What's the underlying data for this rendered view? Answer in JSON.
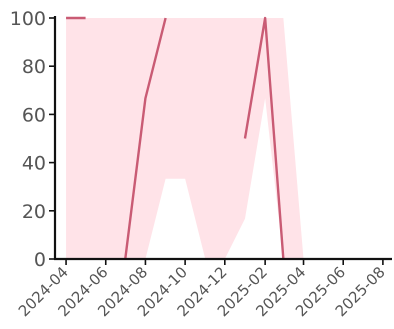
{
  "chart_data": {
    "type": "line",
    "title": "",
    "xlabel": "",
    "ylabel": "",
    "xlim": [
      "2024-03-15",
      "2025-08-15"
    ],
    "ylim": [
      0,
      100
    ],
    "grid": false,
    "legend": "none",
    "x_ticks": [
      "2024-04",
      "2024-06",
      "2024-08",
      "2024-10",
      "2024-12",
      "2025-02",
      "2025-04",
      "2025-06",
      "2025-08"
    ],
    "y_ticks": [
      0,
      20,
      40,
      60,
      80,
      100
    ],
    "colors": {
      "line": "#c95b74",
      "band": "#ffe3e8",
      "axis": "#111111",
      "tick_label": "#555555"
    },
    "band": {
      "x": [
        "2024-04-01",
        "2024-05-01",
        "2024-06-01",
        "2024-07-01",
        "2024-08-01",
        "2024-09-01",
        "2024-10-01",
        "2024-11-01",
        "2024-12-01",
        "2025-01-01",
        "2025-02-01",
        "2025-03-01",
        "2025-04-01"
      ],
      "lower": [
        0,
        0,
        0,
        0,
        0,
        33.3,
        33.3,
        0,
        0,
        16.7,
        66.7,
        0,
        0
      ],
      "upper": [
        100,
        100,
        100,
        100,
        100,
        100,
        100,
        100,
        100,
        100,
        100,
        100,
        0
      ]
    },
    "series": [
      {
        "segments": [
          {
            "x": [
              "2024-04-01",
              "2024-05-01"
            ],
            "y": [
              100,
              100
            ]
          },
          {
            "x": [
              "2024-07-01",
              "2024-08-01",
              "2024-09-01"
            ],
            "y": [
              0,
              66.7,
              100
            ]
          },
          {
            "x": [
              "2025-01-01",
              "2025-02-01",
              "2025-03-01"
            ],
            "y": [
              50,
              100,
              0
            ]
          }
        ]
      }
    ]
  }
}
